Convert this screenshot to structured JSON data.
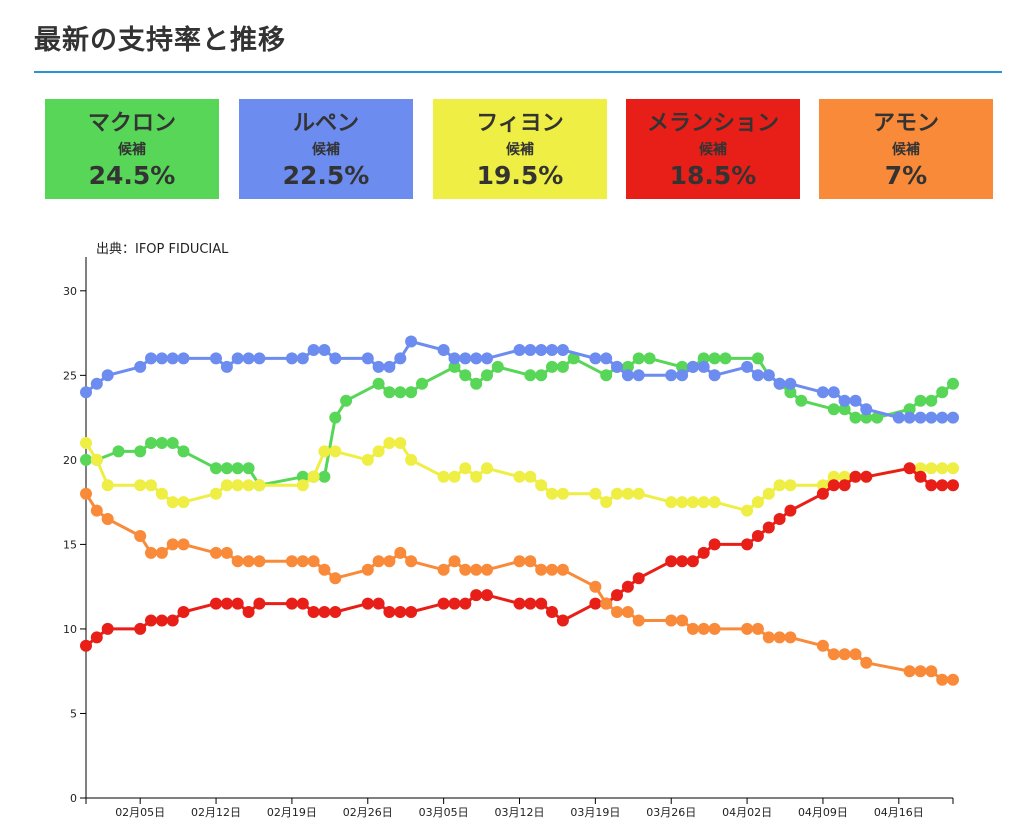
{
  "page": {
    "title": "最新の支持率と推移"
  },
  "cards": [
    {
      "name": "マクロン",
      "role": "候補",
      "pct": "24.5%",
      "color": "#57d658"
    },
    {
      "name": "ルペン",
      "role": "候補",
      "pct": "22.5%",
      "color": "#6c8cf0"
    },
    {
      "name": "フィヨン",
      "role": "候補",
      "pct": "19.5%",
      "color": "#eeee44"
    },
    {
      "name": "メランション",
      "role": "候補",
      "pct": "18.5%",
      "color": "#e81f18"
    },
    {
      "name": "アモン",
      "role": "候補",
      "pct": "7%",
      "color": "#f98a3a"
    }
  ],
  "chart_data": {
    "type": "line",
    "source": "出典：IFOP FIDUCIAL",
    "ylim": [
      0,
      32
    ],
    "yticks": [
      "0",
      "5",
      "10",
      "15",
      "20",
      "25",
      "30"
    ],
    "x_start": "01/31",
    "x_end": "04/21",
    "xticks": [
      "02月05日",
      "02月12日",
      "02月19日",
      "02月26日",
      "03月05日",
      "03月12日",
      "03月19日",
      "03月26日",
      "04月02日",
      "04月09日",
      "04月16日"
    ],
    "series": [
      {
        "name": "マクロン",
        "color": "#57d658",
        "points": [
          [
            "01/31",
            20
          ],
          [
            "02/01",
            20
          ],
          [
            "02/03",
            20.5
          ],
          [
            "02/05",
            20.5
          ],
          [
            "02/06",
            21
          ],
          [
            "02/07",
            21
          ],
          [
            "02/08",
            21
          ],
          [
            "02/09",
            20.5
          ],
          [
            "02/12",
            19.5
          ],
          [
            "02/13",
            19.5
          ],
          [
            "02/14",
            19.5
          ],
          [
            "02/15",
            19.5
          ],
          [
            "02/16",
            18.5
          ],
          [
            "02/20",
            19
          ],
          [
            "02/21",
            19
          ],
          [
            "02/22",
            19
          ],
          [
            "02/23",
            22.5
          ],
          [
            "02/24",
            23.5
          ],
          [
            "02/27",
            24.5
          ],
          [
            "02/28",
            24
          ],
          [
            "03/01",
            24
          ],
          [
            "03/02",
            24
          ],
          [
            "03/03",
            24.5
          ],
          [
            "03/06",
            25.5
          ],
          [
            "03/07",
            25
          ],
          [
            "03/08",
            24.5
          ],
          [
            "03/09",
            25
          ],
          [
            "03/10",
            25.5
          ],
          [
            "03/13",
            25
          ],
          [
            "03/14",
            25
          ],
          [
            "03/15",
            25.5
          ],
          [
            "03/16",
            25.5
          ],
          [
            "03/17",
            26
          ],
          [
            "03/20",
            25
          ],
          [
            "03/21",
            25.5
          ],
          [
            "03/22",
            25.5
          ],
          [
            "03/23",
            26
          ],
          [
            "03/24",
            26
          ],
          [
            "03/27",
            25.5
          ],
          [
            "03/28",
            25.5
          ],
          [
            "03/29",
            26
          ],
          [
            "03/30",
            26
          ],
          [
            "03/31",
            26
          ],
          [
            "04/03",
            26
          ],
          [
            "04/04",
            25
          ],
          [
            "04/05",
            24.5
          ],
          [
            "04/06",
            24
          ],
          [
            "04/07",
            23.5
          ],
          [
            "04/10",
            23
          ],
          [
            "04/11",
            23
          ],
          [
            "04/12",
            22.5
          ],
          [
            "04/13",
            22.5
          ],
          [
            "04/14",
            22.5
          ],
          [
            "04/17",
            23
          ],
          [
            "04/18",
            23.5
          ],
          [
            "04/19",
            23.5
          ],
          [
            "04/20",
            24
          ],
          [
            "04/21",
            24.5
          ]
        ]
      },
      {
        "name": "ルペン",
        "color": "#6c8cf0",
        "points": [
          [
            "01/31",
            24
          ],
          [
            "02/01",
            24.5
          ],
          [
            "02/02",
            25
          ],
          [
            "02/05",
            25.5
          ],
          [
            "02/06",
            26
          ],
          [
            "02/07",
            26
          ],
          [
            "02/08",
            26
          ],
          [
            "02/09",
            26
          ],
          [
            "02/12",
            26
          ],
          [
            "02/13",
            25.5
          ],
          [
            "02/14",
            26
          ],
          [
            "02/15",
            26
          ],
          [
            "02/16",
            26
          ],
          [
            "02/19",
            26
          ],
          [
            "02/20",
            26
          ],
          [
            "02/21",
            26.5
          ],
          [
            "02/22",
            26.5
          ],
          [
            "02/23",
            26
          ],
          [
            "02/26",
            26
          ],
          [
            "02/27",
            25.5
          ],
          [
            "02/28",
            25.5
          ],
          [
            "03/01",
            26
          ],
          [
            "03/02",
            27
          ],
          [
            "03/05",
            26.5
          ],
          [
            "03/06",
            26
          ],
          [
            "03/07",
            26
          ],
          [
            "03/08",
            26
          ],
          [
            "03/09",
            26
          ],
          [
            "03/12",
            26.5
          ],
          [
            "03/13",
            26.5
          ],
          [
            "03/14",
            26.5
          ],
          [
            "03/15",
            26.5
          ],
          [
            "03/16",
            26.5
          ],
          [
            "03/19",
            26
          ],
          [
            "03/20",
            26
          ],
          [
            "03/21",
            25.5
          ],
          [
            "03/22",
            25
          ],
          [
            "03/23",
            25
          ],
          [
            "03/26",
            25
          ],
          [
            "03/27",
            25
          ],
          [
            "03/28",
            25.5
          ],
          [
            "03/29",
            25.5
          ],
          [
            "03/30",
            25
          ],
          [
            "04/02",
            25.5
          ],
          [
            "04/03",
            25
          ],
          [
            "04/04",
            25
          ],
          [
            "04/05",
            24.5
          ],
          [
            "04/06",
            24.5
          ],
          [
            "04/09",
            24
          ],
          [
            "04/10",
            24
          ],
          [
            "04/11",
            23.5
          ],
          [
            "04/12",
            23.5
          ],
          [
            "04/13",
            23
          ],
          [
            "04/16",
            22.5
          ],
          [
            "04/17",
            22.5
          ],
          [
            "04/18",
            22.5
          ],
          [
            "04/19",
            22.5
          ],
          [
            "04/20",
            22.5
          ],
          [
            "04/21",
            22.5
          ]
        ]
      },
      {
        "name": "フィヨン",
        "color": "#eeee44",
        "points": [
          [
            "01/31",
            21
          ],
          [
            "02/01",
            20
          ],
          [
            "02/02",
            18.5
          ],
          [
            "02/05",
            18.5
          ],
          [
            "02/06",
            18.5
          ],
          [
            "02/07",
            18
          ],
          [
            "02/08",
            17.5
          ],
          [
            "02/09",
            17.5
          ],
          [
            "02/12",
            18
          ],
          [
            "02/13",
            18.5
          ],
          [
            "02/14",
            18.5
          ],
          [
            "02/15",
            18.5
          ],
          [
            "02/16",
            18.5
          ],
          [
            "02/20",
            18.5
          ],
          [
            "02/21",
            19
          ],
          [
            "02/22",
            20.5
          ],
          [
            "02/23",
            20.5
          ],
          [
            "02/26",
            20
          ],
          [
            "02/27",
            20.5
          ],
          [
            "02/28",
            21
          ],
          [
            "03/01",
            21
          ],
          [
            "03/02",
            20
          ],
          [
            "03/05",
            19
          ],
          [
            "03/06",
            19
          ],
          [
            "03/07",
            19.5
          ],
          [
            "03/08",
            19
          ],
          [
            "03/09",
            19.5
          ],
          [
            "03/12",
            19
          ],
          [
            "03/13",
            19
          ],
          [
            "03/14",
            18.5
          ],
          [
            "03/15",
            18
          ],
          [
            "03/16",
            18
          ],
          [
            "03/19",
            18
          ],
          [
            "03/20",
            17.5
          ],
          [
            "03/21",
            18
          ],
          [
            "03/22",
            18
          ],
          [
            "03/23",
            18
          ],
          [
            "03/26",
            17.5
          ],
          [
            "03/27",
            17.5
          ],
          [
            "03/28",
            17.5
          ],
          [
            "03/29",
            17.5
          ],
          [
            "03/30",
            17.5
          ],
          [
            "04/02",
            17
          ],
          [
            "04/03",
            17.5
          ],
          [
            "04/04",
            18
          ],
          [
            "04/05",
            18.5
          ],
          [
            "04/06",
            18.5
          ],
          [
            "04/09",
            18.5
          ],
          [
            "04/10",
            19
          ],
          [
            "04/11",
            19
          ],
          [
            "04/12",
            19
          ],
          [
            "04/13",
            19
          ],
          [
            "04/17",
            19.5
          ],
          [
            "04/18",
            19.5
          ],
          [
            "04/19",
            19.5
          ],
          [
            "04/20",
            19.5
          ],
          [
            "04/21",
            19.5
          ]
        ]
      },
      {
        "name": "メランション",
        "color": "#e81f18",
        "points": [
          [
            "01/31",
            9
          ],
          [
            "02/01",
            9.5
          ],
          [
            "02/02",
            10
          ],
          [
            "02/05",
            10
          ],
          [
            "02/06",
            10.5
          ],
          [
            "02/07",
            10.5
          ],
          [
            "02/08",
            10.5
          ],
          [
            "02/09",
            11
          ],
          [
            "02/12",
            11.5
          ],
          [
            "02/13",
            11.5
          ],
          [
            "02/14",
            11.5
          ],
          [
            "02/15",
            11
          ],
          [
            "02/16",
            11.5
          ],
          [
            "02/19",
            11.5
          ],
          [
            "02/20",
            11.5
          ],
          [
            "02/21",
            11
          ],
          [
            "02/22",
            11
          ],
          [
            "02/23",
            11
          ],
          [
            "02/26",
            11.5
          ],
          [
            "02/27",
            11.5
          ],
          [
            "02/28",
            11
          ],
          [
            "03/01",
            11
          ],
          [
            "03/02",
            11
          ],
          [
            "03/05",
            11.5
          ],
          [
            "03/06",
            11.5
          ],
          [
            "03/07",
            11.5
          ],
          [
            "03/08",
            12
          ],
          [
            "03/09",
            12
          ],
          [
            "03/12",
            11.5
          ],
          [
            "03/13",
            11.5
          ],
          [
            "03/14",
            11.5
          ],
          [
            "03/15",
            11
          ],
          [
            "03/16",
            10.5
          ],
          [
            "03/19",
            11.5
          ],
          [
            "03/20",
            11.5
          ],
          [
            "03/21",
            12
          ],
          [
            "03/22",
            12.5
          ],
          [
            "03/23",
            13
          ],
          [
            "03/26",
            14
          ],
          [
            "03/27",
            14
          ],
          [
            "03/28",
            14
          ],
          [
            "03/29",
            14.5
          ],
          [
            "03/30",
            15
          ],
          [
            "04/02",
            15
          ],
          [
            "04/03",
            15.5
          ],
          [
            "04/04",
            16
          ],
          [
            "04/05",
            16.5
          ],
          [
            "04/06",
            17
          ],
          [
            "04/09",
            18
          ],
          [
            "04/10",
            18.5
          ],
          [
            "04/11",
            18.5
          ],
          [
            "04/12",
            19
          ],
          [
            "04/13",
            19
          ],
          [
            "04/17",
            19.5
          ],
          [
            "04/18",
            19
          ],
          [
            "04/19",
            18.5
          ],
          [
            "04/20",
            18.5
          ],
          [
            "04/21",
            18.5
          ]
        ]
      },
      {
        "name": "アモン",
        "color": "#f98a3a",
        "points": [
          [
            "01/31",
            18
          ],
          [
            "02/01",
            17
          ],
          [
            "02/02",
            16.5
          ],
          [
            "02/05",
            15.5
          ],
          [
            "02/06",
            14.5
          ],
          [
            "02/07",
            14.5
          ],
          [
            "02/08",
            15
          ],
          [
            "02/09",
            15
          ],
          [
            "02/12",
            14.5
          ],
          [
            "02/13",
            14.5
          ],
          [
            "02/14",
            14
          ],
          [
            "02/15",
            14
          ],
          [
            "02/16",
            14
          ],
          [
            "02/19",
            14
          ],
          [
            "02/20",
            14
          ],
          [
            "02/21",
            14
          ],
          [
            "02/22",
            13.5
          ],
          [
            "02/23",
            13
          ],
          [
            "02/26",
            13.5
          ],
          [
            "02/27",
            14
          ],
          [
            "02/28",
            14
          ],
          [
            "03/01",
            14.5
          ],
          [
            "03/02",
            14
          ],
          [
            "03/05",
            13.5
          ],
          [
            "03/06",
            14
          ],
          [
            "03/07",
            13.5
          ],
          [
            "03/08",
            13.5
          ],
          [
            "03/09",
            13.5
          ],
          [
            "03/12",
            14
          ],
          [
            "03/13",
            14
          ],
          [
            "03/14",
            13.5
          ],
          [
            "03/15",
            13.5
          ],
          [
            "03/16",
            13.5
          ],
          [
            "03/19",
            12.5
          ],
          [
            "03/20",
            11.5
          ],
          [
            "03/21",
            11
          ],
          [
            "03/22",
            11
          ],
          [
            "03/23",
            10.5
          ],
          [
            "03/26",
            10.5
          ],
          [
            "03/27",
            10.5
          ],
          [
            "03/28",
            10
          ],
          [
            "03/29",
            10
          ],
          [
            "03/30",
            10
          ],
          [
            "04/02",
            10
          ],
          [
            "04/03",
            10
          ],
          [
            "04/04",
            9.5
          ],
          [
            "04/05",
            9.5
          ],
          [
            "04/06",
            9.5
          ],
          [
            "04/09",
            9
          ],
          [
            "04/10",
            8.5
          ],
          [
            "04/11",
            8.5
          ],
          [
            "04/12",
            8.5
          ],
          [
            "04/13",
            8
          ],
          [
            "04/17",
            7.5
          ],
          [
            "04/18",
            7.5
          ],
          [
            "04/19",
            7.5
          ],
          [
            "04/20",
            7
          ],
          [
            "04/21",
            7
          ]
        ]
      }
    ]
  }
}
